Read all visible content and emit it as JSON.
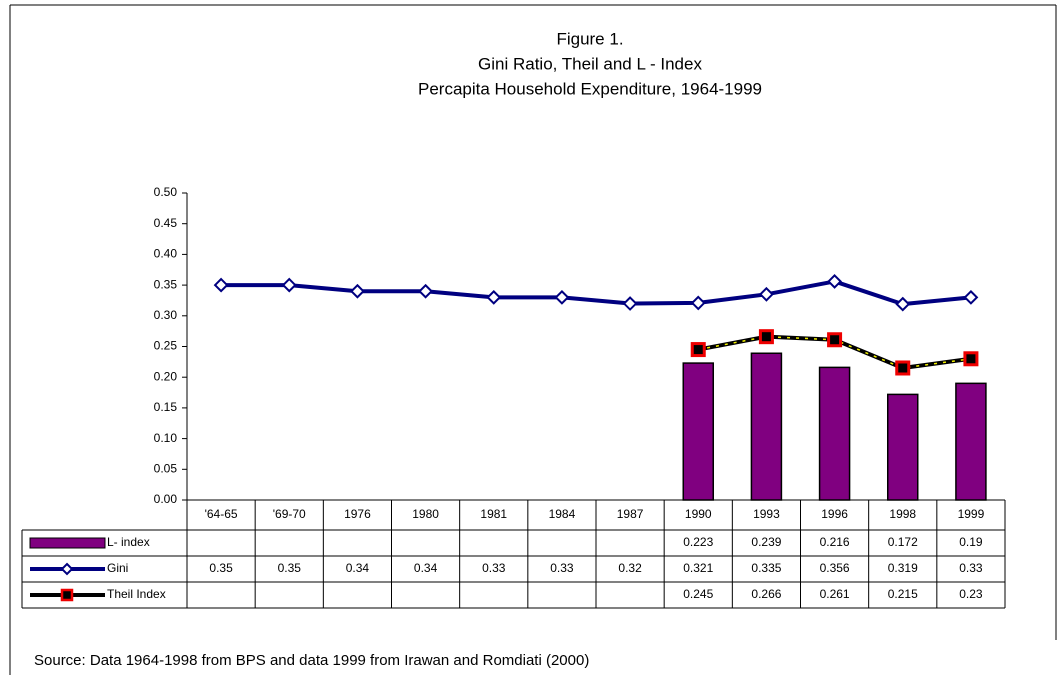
{
  "chart_data": {
    "type": "bar-line-table",
    "title": [
      "Figure 1.",
      "Gini Ratio, Theil and L - Index",
      "Percapita Household Expenditure, 1964-1999"
    ],
    "source": "Source: Data 1964-1998 from BPS and data 1999 from Irawan and Romdiati (2000)",
    "categories": [
      "'64-65",
      "'69-70",
      "1976",
      "1980",
      "1981",
      "1984",
      "1987",
      "1990",
      "1993",
      "1996",
      "1998",
      "1999"
    ],
    "series": [
      {
        "name": "L- index",
        "kind": "bar",
        "color": "#800080",
        "values": [
          null,
          null,
          null,
          null,
          null,
          null,
          null,
          0.223,
          0.239,
          0.216,
          0.172,
          0.19
        ]
      },
      {
        "name": "Gini",
        "kind": "line",
        "color": "#000080",
        "marker": "diamond",
        "values": [
          0.35,
          0.35,
          0.34,
          0.34,
          0.33,
          0.33,
          0.32,
          0.321,
          0.335,
          0.356,
          0.319,
          0.33
        ]
      },
      {
        "name": "Theil Index",
        "kind": "line",
        "color": "#000000",
        "marker": "square",
        "values": [
          null,
          null,
          null,
          null,
          null,
          null,
          null,
          0.245,
          0.266,
          0.261,
          0.215,
          0.23
        ]
      }
    ],
    "ylim": [
      0,
      0.5
    ],
    "yticks": [
      {
        "value": 0,
        "label": "0.00"
      },
      0.05,
      {
        "value": 0.1,
        "label": "0.10"
      },
      0.15,
      {
        "value": 0.2,
        "label": "0.20"
      },
      0.25,
      {
        "value": 0.3,
        "label": "0.30"
      },
      0.35,
      {
        "value": 0.4,
        "label": "0.40"
      },
      0.45,
      {
        "value": 0.5,
        "label": "0.50"
      }
    ],
    "grid": false
  }
}
